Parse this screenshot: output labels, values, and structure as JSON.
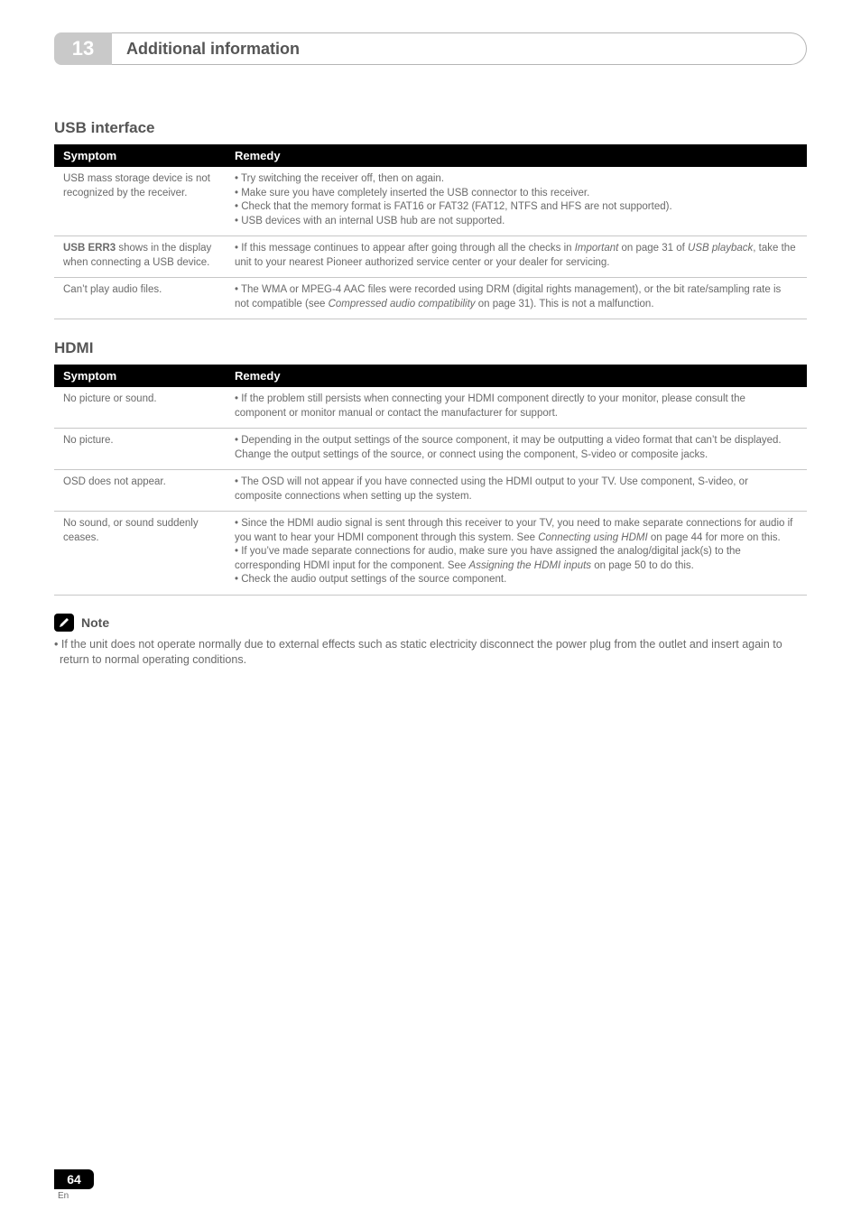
{
  "chapter": {
    "number": "13",
    "title": "Additional information"
  },
  "sections": [
    {
      "heading": "USB interface",
      "columns": [
        "Symptom",
        "Remedy"
      ],
      "rows": [
        {
          "symptom_html": "USB mass storage device is not recognized by the receiver.",
          "remedy_html": "• Try switching the receiver off, then on again.<br>• Make sure you have completely inserted the USB connector to this receiver.<br>• Check that the memory format is FAT16 or FAT32 (FAT12, NTFS and HFS are not supported).<br>• USB devices with an internal USB hub are not supported."
        },
        {
          "symptom_html": "<b>USB ERR3</b> shows in the display when connecting a USB device.",
          "remedy_html": "• If this message continues to appear after going through all the checks in <span class=\"italic\">Important</span> on page 31 of <span class=\"italic\">USB playback</span>, take the unit to your nearest Pioneer authorized service center or your dealer for servicing."
        },
        {
          "symptom_html": "Can’t play audio files.",
          "remedy_html": "• The WMA or MPEG-4 AAC files were recorded using DRM (digital rights management), or the bit rate/sampling rate is not compatible (see <span class=\"italic\">Compressed audio compatibility</span> on page 31). This is not a malfunction."
        }
      ]
    },
    {
      "heading": "HDMI",
      "columns": [
        "Symptom",
        "Remedy"
      ],
      "rows": [
        {
          "symptom_html": "No picture or sound.",
          "remedy_html": "• If the problem still persists when connecting your HDMI component directly to your monitor, please consult the component or monitor manual or contact the manufacturer for support."
        },
        {
          "symptom_html": "No picture.",
          "remedy_html": "• Depending in the output settings of the source component, it may be outputting a video format that can’t be displayed. Change the output settings of the source, or connect using the component, S-video or composite jacks."
        },
        {
          "symptom_html": "OSD does not appear.",
          "remedy_html": "• The OSD will not appear if you have connected using the HDMI output to your TV. Use component, S-video, or composite connections when setting up the system."
        },
        {
          "symptom_html": "No sound, or sound suddenly ceases.",
          "remedy_html": "• Since the HDMI audio signal is sent through this receiver to your TV, you need to make separate connections for audio if you want to hear your HDMI component through this system. See <span class=\"italic\">Connecting using HDMI</span> on page 44 for more on this.<br>• If you’ve made separate connections for audio, make sure you have assigned the analog/digital jack(s) to the corresponding HDMI input for the component. See <span class=\"italic\">Assigning the HDMI inputs</span> on page 50 to do this.<br>• Check the audio output settings of the source component."
        }
      ]
    }
  ],
  "note": {
    "label": "Note",
    "body": "• If the unit does not operate normally due to external effects such as static electricity disconnect the power plug from the outlet and insert again to return to normal operating conditions."
  },
  "footer": {
    "page": "64",
    "lang": "En"
  },
  "colors": {
    "chapter_tab_bg": "#c9c9c9",
    "chapter_tab_fg": "#ffffff",
    "table_header_bg": "#000000",
    "table_header_fg": "#ffffff",
    "body_text": "#6a6a6a",
    "rule": "#c7c7c7"
  }
}
